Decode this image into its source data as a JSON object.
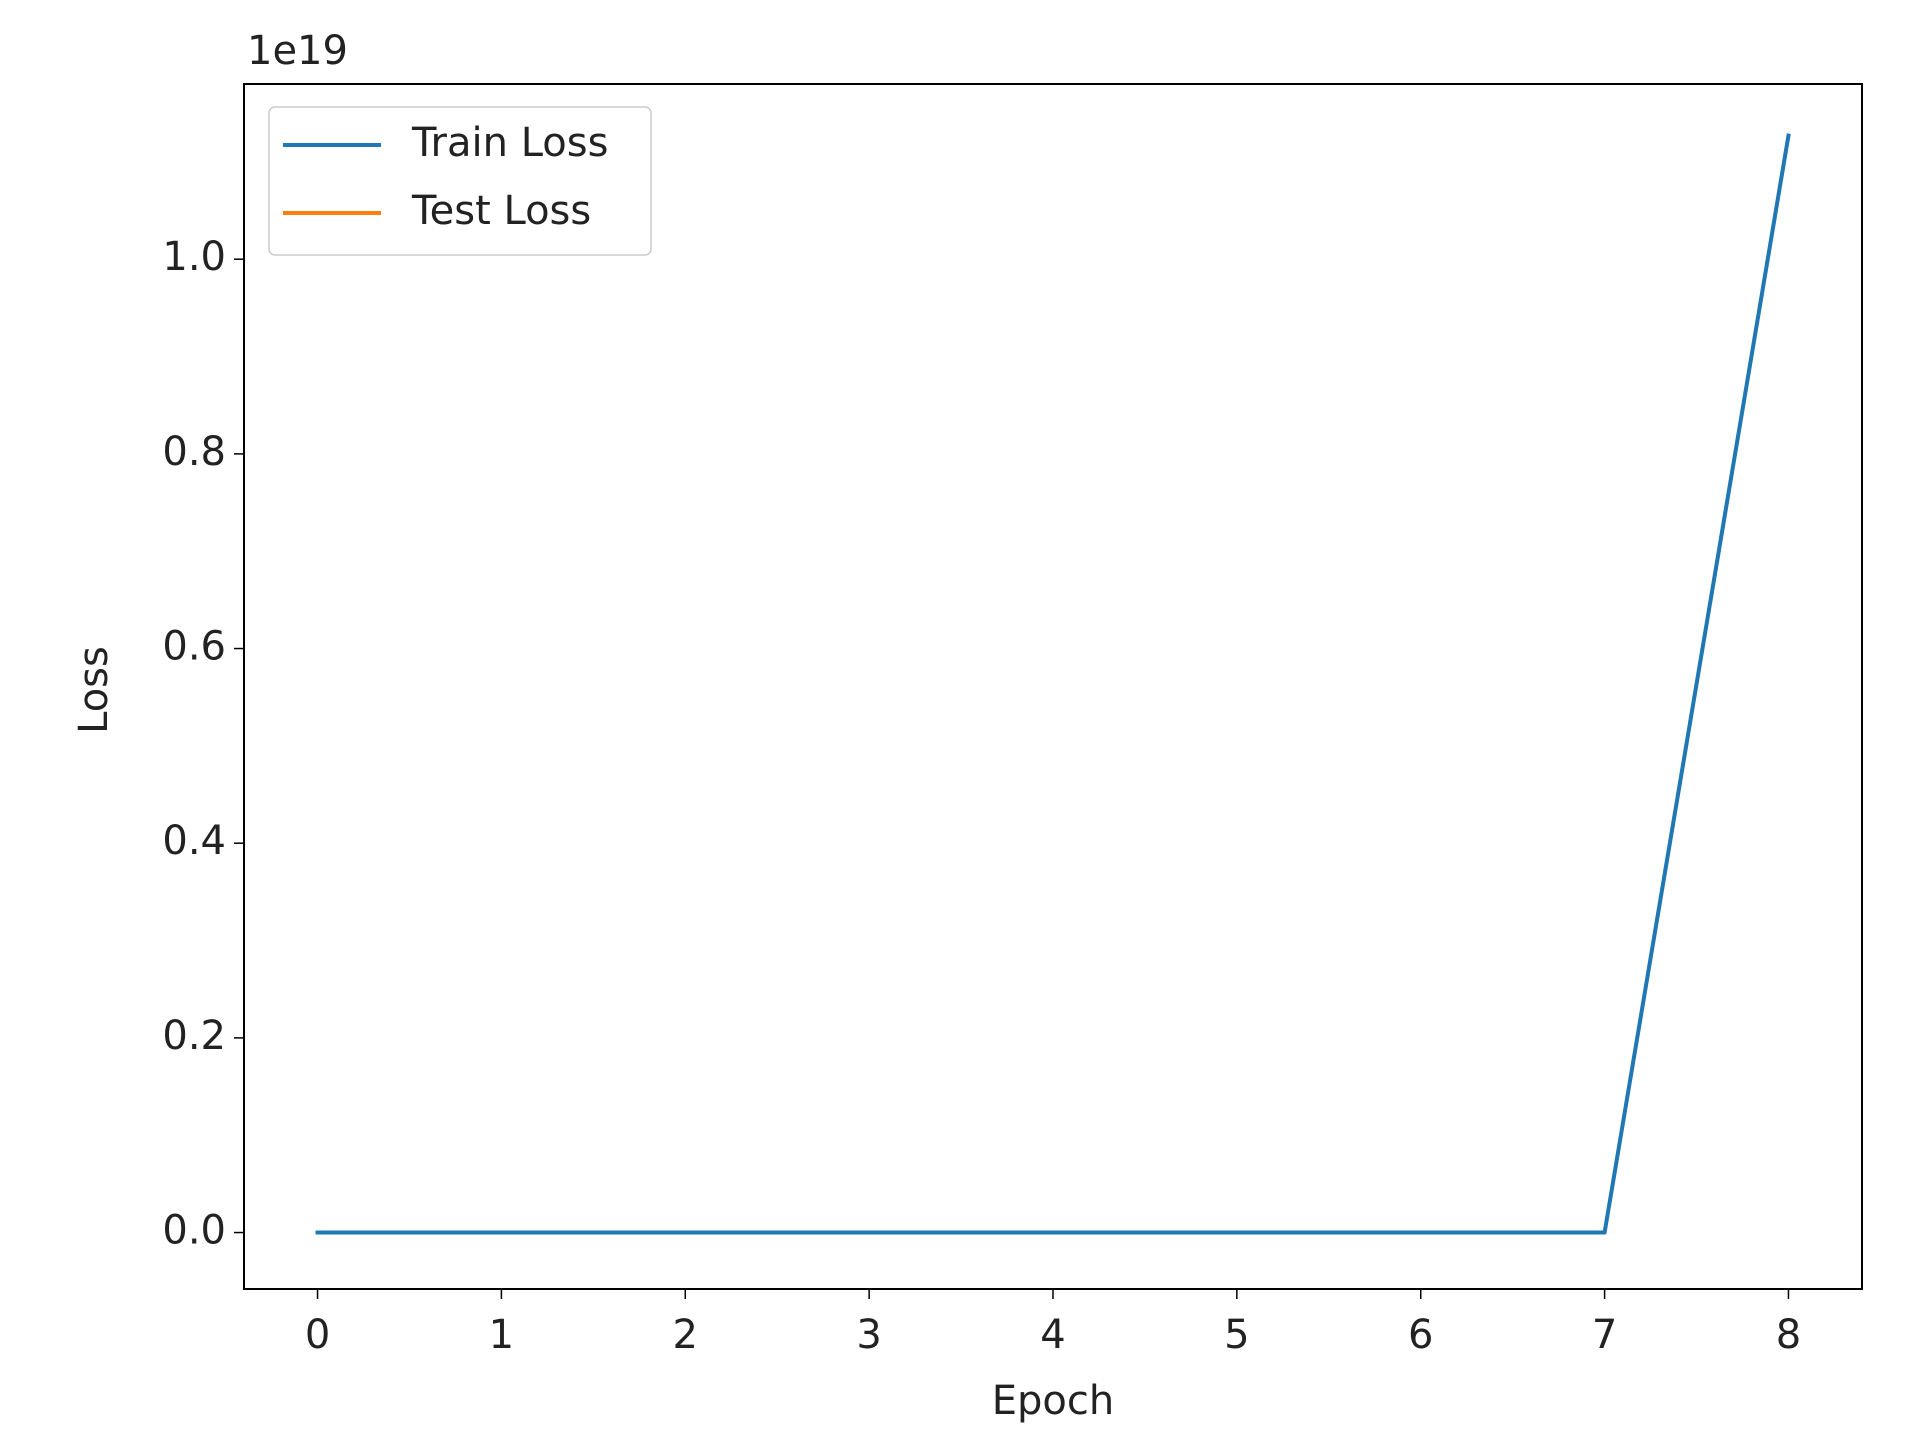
{
  "chart_data": {
    "type": "line",
    "x": [
      0,
      1,
      2,
      3,
      4,
      5,
      6,
      7,
      8
    ],
    "series": [
      {
        "name": "Train Loss",
        "color": "#1f77b4",
        "values": [
          0,
          0,
          0,
          0,
          0,
          0,
          0,
          0,
          1.127
        ]
      },
      {
        "name": "Test Loss",
        "color": "#ff7f0e",
        "values": [
          null,
          null,
          null,
          null,
          null,
          null,
          null,
          null,
          null
        ]
      }
    ],
    "xlabel": "Epoch",
    "ylabel": "Loss",
    "y_offset_label": "1e19",
    "xlim": [
      -0.4,
      8.4
    ],
    "xticks": [
      0,
      1,
      2,
      3,
      4,
      5,
      6,
      7,
      8
    ],
    "ylim": [
      -0.058,
      1.18
    ],
    "yticks": [
      {
        "value": 0,
        "label": "0.0"
      },
      {
        "value": 0.2,
        "label": "0.2"
      },
      {
        "value": 0.4,
        "label": "0.4"
      },
      {
        "value": 0.6,
        "label": "0.6"
      },
      {
        "value": 0.8,
        "label": "0.8"
      },
      {
        "value": 1.0,
        "label": "1.0"
      }
    ],
    "legend": "upper left",
    "grid": false
  }
}
